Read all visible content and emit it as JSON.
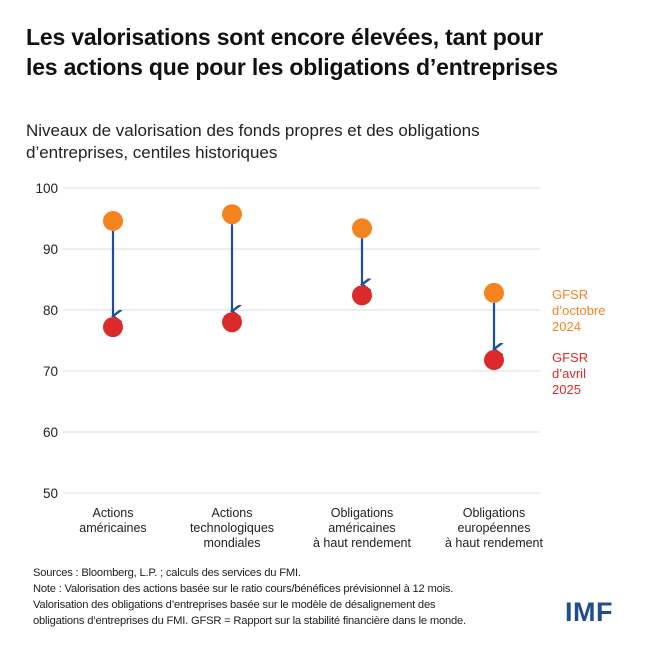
{
  "header": {
    "title_line1": "Les valorisations sont encore élevées, tant pour",
    "title_line2": "les actions que pour les obligations d’entreprises",
    "subtitle_line1": "Niveaux de valorisation des fonds propres et des obligations",
    "subtitle_line2": "d’entreprises, centiles historiques"
  },
  "chart_data": {
    "type": "scatter",
    "subtype": "dumbbell-arrow",
    "title": "Niveaux de valorisation des fonds propres et des obligations d’entreprises, centiles historiques",
    "xlabel": "",
    "ylabel": "",
    "ylim": [
      50,
      100
    ],
    "yticks": [
      50,
      60,
      70,
      80,
      90,
      100
    ],
    "grid": true,
    "legend_placement": "right",
    "categories": [
      [
        "Actions",
        "américaines"
      ],
      [
        "Actions",
        "technologiques",
        "mondiales"
      ],
      [
        "Obligations",
        "américaines",
        "à haut rendement"
      ],
      [
        "Obligations",
        "européennes",
        "à haut rendement"
      ]
    ],
    "series": [
      {
        "name": "GFSR d’octobre 2024",
        "label_lines": [
          "GFSR",
          "d’octobre",
          "2024"
        ],
        "color": "#f5841f",
        "values": [
          94.6,
          95.7,
          93.4,
          82.8
        ]
      },
      {
        "name": "GFSR d’avril 2025",
        "label_lines": [
          "GFSR",
          "d’avril",
          "2025"
        ],
        "color": "#dc2a2a",
        "values": [
          77.2,
          78.0,
          82.4,
          71.8
        ]
      }
    ],
    "arrow_color": "#1f4e9c"
  },
  "footer": {
    "sources": "Sources : Bloomberg, L.P. ; calculs des services du FMI.",
    "note_line1": "Note : Valorisation des actions basée sur le ratio cours/bénéfices prévisionnel à 12 mois.",
    "note_line2": "Valorisation des obligations d’entreprises basée sur le modèle de désalignement des",
    "note_line3": "obligations d’entreprises du FMI. GFSR = Rapport sur la stabilité financière dans le monde.",
    "logo": "IMF"
  }
}
